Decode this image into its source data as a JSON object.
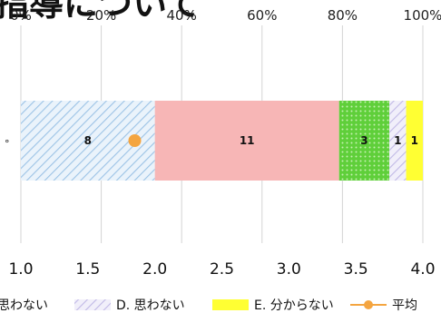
{
  "title": "指導について",
  "chart_data": {
    "type": "bar",
    "orientation": "horizontal",
    "stacked": "percent",
    "top_axis": {
      "ticks": [
        "0%",
        "20%",
        "40%",
        "60%",
        "80%",
        "100%"
      ]
    },
    "bottom_axis": {
      "ticks": [
        "1.0",
        "1.5",
        "2.0",
        "2.5",
        "3.0",
        "3.5",
        "4.0"
      ],
      "range": [
        1.0,
        4.0
      ]
    },
    "categories": [
      "°"
    ],
    "series": [
      {
        "name": "思わない",
        "values": [
          8
        ],
        "label": "8",
        "color": "#c7ddf1",
        "pattern": "hatch-blue"
      },
      {
        "name": "",
        "values": [
          11
        ],
        "label": "11",
        "color": "#f7b6b6",
        "pattern": "solid"
      },
      {
        "name": "",
        "values": [
          3
        ],
        "label": "3",
        "color": "#7ed957",
        "pattern": "dots"
      },
      {
        "name": "D. 思わない",
        "values": [
          1
        ],
        "label": "1",
        "color": "#d9d4ef",
        "pattern": "hatch-purple"
      },
      {
        "name": "E. 分からない",
        "values": [
          1
        ],
        "label": "1",
        "color": "#ffff33",
        "pattern": "solid"
      }
    ],
    "average": {
      "name": "平均",
      "value": 1.85,
      "color": "#f4a540"
    },
    "grid": "vertical",
    "legend": "bottom"
  }
}
